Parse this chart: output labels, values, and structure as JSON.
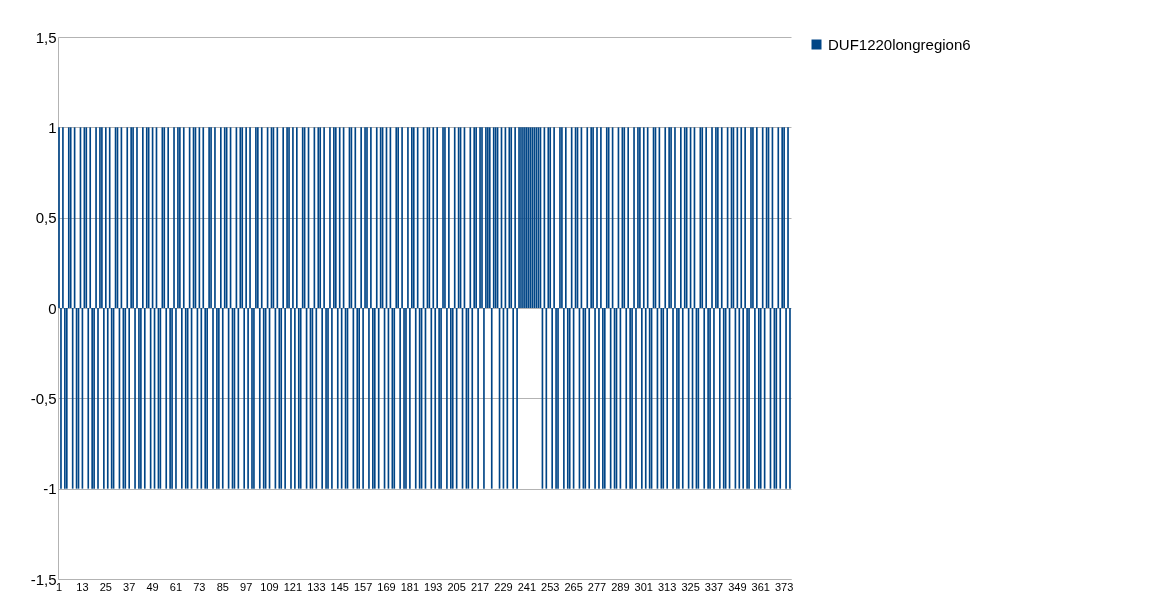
{
  "chart_data": {
    "type": "bar",
    "categories": [
      "1",
      null,
      null,
      null,
      null,
      null,
      null,
      null,
      null,
      null,
      null,
      null,
      "13",
      null,
      null,
      null,
      null,
      null,
      null,
      null,
      null,
      null,
      null,
      null,
      "25",
      null,
      null,
      null,
      null,
      null,
      null,
      null,
      null,
      null,
      null,
      null,
      "37",
      null,
      null,
      null,
      null,
      null,
      null,
      null,
      null,
      null,
      null,
      null,
      "49",
      null,
      null,
      null,
      null,
      null,
      null,
      null,
      null,
      null,
      null,
      null,
      "61",
      null,
      null,
      null,
      null,
      null,
      null,
      null,
      null,
      null,
      null,
      null,
      "73",
      null,
      null,
      null,
      null,
      null,
      null,
      null,
      null,
      null,
      null,
      null,
      "85",
      null,
      null,
      null,
      null,
      null,
      null,
      null,
      null,
      null,
      null,
      null,
      "97",
      null,
      null,
      null,
      null,
      null,
      null,
      null,
      null,
      null,
      null,
      null,
      "109",
      null,
      null,
      null,
      null,
      null,
      null,
      null,
      null,
      null,
      null,
      null,
      "121",
      null,
      null,
      null,
      null,
      null,
      null,
      null,
      null,
      null,
      null,
      null,
      "133",
      null,
      null,
      null,
      null,
      null,
      null,
      null,
      null,
      null,
      null,
      null,
      "145",
      null,
      null,
      null,
      null,
      null,
      null,
      null,
      null,
      null,
      null,
      null,
      "157",
      null,
      null,
      null,
      null,
      null,
      null,
      null,
      null,
      null,
      null,
      null,
      "169",
      null,
      null,
      null,
      null,
      null,
      null,
      null,
      null,
      null,
      null,
      null,
      "181",
      null,
      null,
      null,
      null,
      null,
      null,
      null,
      null,
      null,
      null,
      null,
      "193",
      null,
      null,
      null,
      null,
      null,
      null,
      null,
      null,
      null,
      null,
      null,
      "205",
      null,
      null,
      null,
      null,
      null,
      null,
      null,
      null,
      null,
      null,
      null,
      "217",
      null,
      null,
      null,
      null,
      null,
      null,
      null,
      null,
      null,
      null,
      null,
      "229",
      null,
      null,
      null,
      null,
      null,
      null,
      null,
      null,
      null,
      null,
      null,
      "241",
      null,
      null,
      null,
      null,
      null,
      null,
      null,
      null,
      null,
      null,
      null,
      "253",
      null,
      null,
      null,
      null,
      null,
      null,
      null,
      null,
      null,
      null,
      null,
      "265",
      null,
      null,
      null,
      null,
      null,
      null,
      null,
      null,
      null,
      null,
      null,
      "277",
      null,
      null,
      null,
      null,
      null,
      null,
      null,
      null,
      null,
      null,
      null,
      "289",
      null,
      null,
      null,
      null,
      null,
      null,
      null,
      null,
      null,
      null,
      null,
      "301",
      null,
      null,
      null,
      null,
      null,
      null,
      null,
      null,
      null,
      null,
      null,
      "313",
      null,
      null,
      null,
      null,
      null,
      null,
      null,
      null,
      null,
      null,
      null,
      "325",
      null,
      null,
      null,
      null,
      null,
      null,
      null,
      null,
      null,
      null,
      null,
      "337",
      null,
      null,
      null,
      null,
      null,
      null,
      null,
      null,
      null,
      null,
      null,
      "349",
      null,
      null,
      null,
      null,
      null,
      null,
      null,
      null,
      null,
      null,
      null,
      "361",
      null,
      null,
      null,
      null,
      null,
      null,
      null,
      null,
      null,
      null,
      null,
      "373",
      null,
      null,
      null
    ],
    "series": [
      {
        "name": "DUF1220longregion6",
        "color": "#004586",
        "values": [
          1,
          -1,
          1,
          -1,
          -1,
          1,
          1,
          -1,
          1,
          -1,
          -1,
          1,
          -1,
          1,
          1,
          -1,
          1,
          -1,
          -1,
          1,
          -1,
          1,
          1,
          -1,
          1,
          -1,
          1,
          -1,
          -1,
          1,
          1,
          -1,
          1,
          -1,
          -1,
          1,
          -1,
          1,
          1,
          -1,
          1,
          -1,
          -1,
          1,
          -1,
          1,
          1,
          -1,
          1,
          -1,
          1,
          -1,
          -1,
          1,
          1,
          -1,
          1,
          -1,
          -1,
          1,
          -1,
          1,
          1,
          -1,
          1,
          -1,
          -1,
          1,
          -1,
          1,
          1,
          -1,
          1,
          -1,
          1,
          -1,
          -1,
          1,
          1,
          -1,
          1,
          -1,
          -1,
          1,
          -1,
          1,
          1,
          -1,
          1,
          -1,
          -1,
          1,
          -1,
          1,
          1,
          -1,
          1,
          -1,
          1,
          -1,
          -1,
          1,
          1,
          -1,
          1,
          -1,
          -1,
          1,
          -1,
          1,
          1,
          -1,
          1,
          -1,
          -1,
          1,
          -1,
          1,
          1,
          -1,
          1,
          -1,
          1,
          -1,
          -1,
          1,
          1,
          -1,
          1,
          -1,
          -1,
          1,
          -1,
          1,
          1,
          -1,
          1,
          -1,
          -1,
          1,
          -1,
          1,
          1,
          -1,
          1,
          -1,
          1,
          -1,
          -1,
          1,
          1,
          -1,
          1,
          -1,
          -1,
          1,
          -1,
          1,
          1,
          -1,
          1,
          -1,
          -1,
          1,
          -1,
          1,
          1,
          -1,
          1,
          -1,
          1,
          -1,
          -1,
          1,
          1,
          -1,
          1,
          -1,
          -1,
          1,
          -1,
          1,
          1,
          -1,
          1,
          -1,
          -1,
          1,
          -1,
          1,
          1,
          -1,
          1,
          -1,
          1,
          -1,
          -1,
          1,
          1,
          -1,
          1,
          -1,
          -1,
          1,
          -1,
          1,
          1,
          -1,
          1,
          -1,
          -1,
          1,
          -1,
          1,
          1,
          -1,
          1,
          1,
          -1,
          1,
          1,
          1,
          -1,
          1,
          1,
          1,
          -1,
          1,
          -1,
          1,
          -1,
          1,
          1,
          -1,
          1,
          -1,
          1,
          1,
          1,
          1,
          1,
          1,
          1,
          1,
          1,
          1,
          1,
          1,
          -1,
          1,
          -1,
          1,
          1,
          -1,
          1,
          -1,
          -1,
          1,
          1,
          -1,
          1,
          -1,
          -1,
          1,
          -1,
          1,
          1,
          -1,
          1,
          -1,
          -1,
          1,
          -1,
          1,
          1,
          -1,
          1,
          -1,
          1,
          -1,
          -1,
          1,
          1,
          -1,
          1,
          -1,
          -1,
          1,
          -1,
          1,
          1,
          -1,
          1,
          -1,
          -1,
          1,
          -1,
          1,
          1,
          -1,
          1,
          -1,
          1,
          -1,
          -1,
          1,
          1,
          -1,
          1,
          -1,
          -1,
          1,
          -1,
          1,
          1,
          -1,
          1,
          -1,
          -1,
          1,
          -1,
          1,
          1,
          -1,
          1,
          -1,
          1,
          -1,
          -1,
          1,
          1,
          -1,
          1,
          -1,
          -1,
          1,
          -1,
          1,
          1,
          -1,
          1,
          -1,
          -1,
          1,
          -1,
          1,
          1,
          -1,
          1,
          -1,
          1,
          -1,
          1,
          -1,
          -1,
          1,
          1,
          -1,
          1,
          -1,
          -1,
          1,
          -1,
          1,
          1,
          -1,
          1,
          -1,
          -1,
          1,
          -1,
          1,
          1,
          -1,
          1,
          -1
        ]
      }
    ],
    "ylim": [
      -1.5,
      1.5
    ],
    "yticks": [
      {
        "value": -1.5,
        "label": "-1,5"
      },
      -1,
      {
        "value": -0.5,
        "label": "-0,5"
      },
      0,
      {
        "value": 0.5,
        "label": "0,5"
      },
      1,
      {
        "value": 1.5,
        "label": "1,5"
      }
    ],
    "grid": "y",
    "legend": "right"
  }
}
